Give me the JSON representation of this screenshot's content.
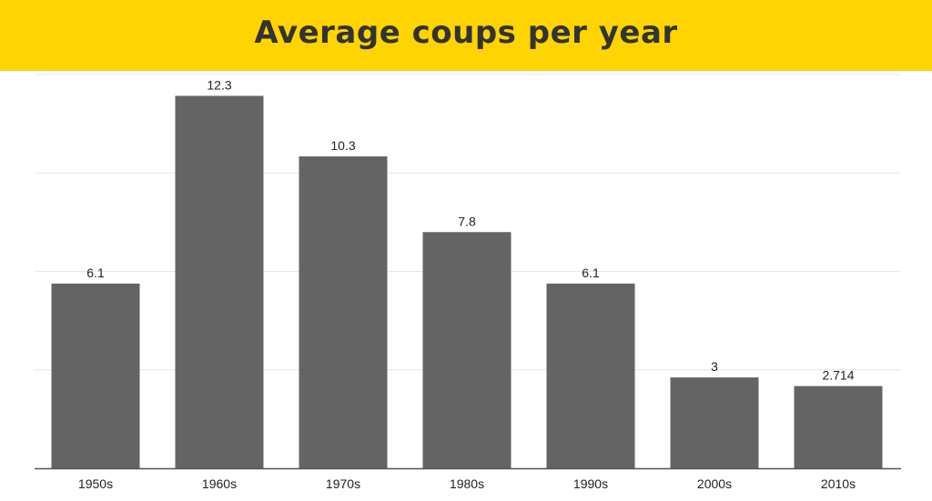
{
  "header": {
    "title": "Average coups per year"
  },
  "colors": {
    "banner": "#ffd400",
    "bar": "#646464",
    "grid": "#e6e6e6",
    "axis": "#555555",
    "text": "#222222"
  },
  "chart_data": {
    "type": "bar",
    "title": "Average coups per year",
    "xlabel": "",
    "ylabel": "",
    "categories": [
      "1950s",
      "1960s",
      "1970s",
      "1980s",
      "1990s",
      "2000s",
      "2010s"
    ],
    "values": [
      6.1,
      12.3,
      10.3,
      7.8,
      6.1,
      3,
      2.714
    ],
    "data_labels": [
      "6.1",
      "12.3",
      "10.3",
      "7.8",
      "6.1",
      "3",
      "2.714"
    ],
    "ylim": [
      0,
      13
    ],
    "grid": true,
    "legend": "none"
  }
}
